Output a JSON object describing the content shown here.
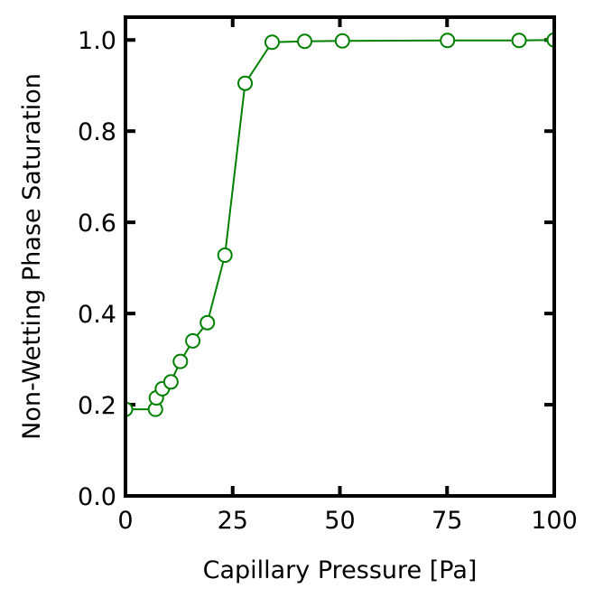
{
  "chart_data": {
    "type": "line",
    "title": "",
    "xlabel": "Capillary Pressure [Pa]",
    "ylabel": "Non-Wetting Phase Saturation",
    "xlim": [
      0,
      100
    ],
    "ylim": [
      0,
      1.05
    ],
    "xticks": [
      0,
      25,
      50,
      75,
      100
    ],
    "xtick_labels": [
      "0",
      "25",
      "50",
      "75",
      "100"
    ],
    "yticks": [
      0.0,
      0.2,
      0.4,
      0.6,
      0.8,
      1.0
    ],
    "ytick_labels": [
      "0.0",
      "0.2",
      "0.4",
      "0.6",
      "0.8",
      "1.0"
    ],
    "grid": false,
    "legend": "none",
    "series": [
      {
        "color": "#008000",
        "marker": "open-circle",
        "x": [
          0,
          7,
          7.2,
          8.6,
          10.6,
          12.8,
          15.7,
          19.1,
          23.2,
          27.9,
          34.2,
          41.8,
          50.6,
          75.1,
          91.8,
          100
        ],
        "y": [
          0.19,
          0.19,
          0.215,
          0.235,
          0.25,
          0.295,
          0.34,
          0.38,
          0.528,
          0.905,
          0.995,
          0.997,
          0.998,
          0.999,
          0.999,
          1.0
        ]
      }
    ]
  }
}
